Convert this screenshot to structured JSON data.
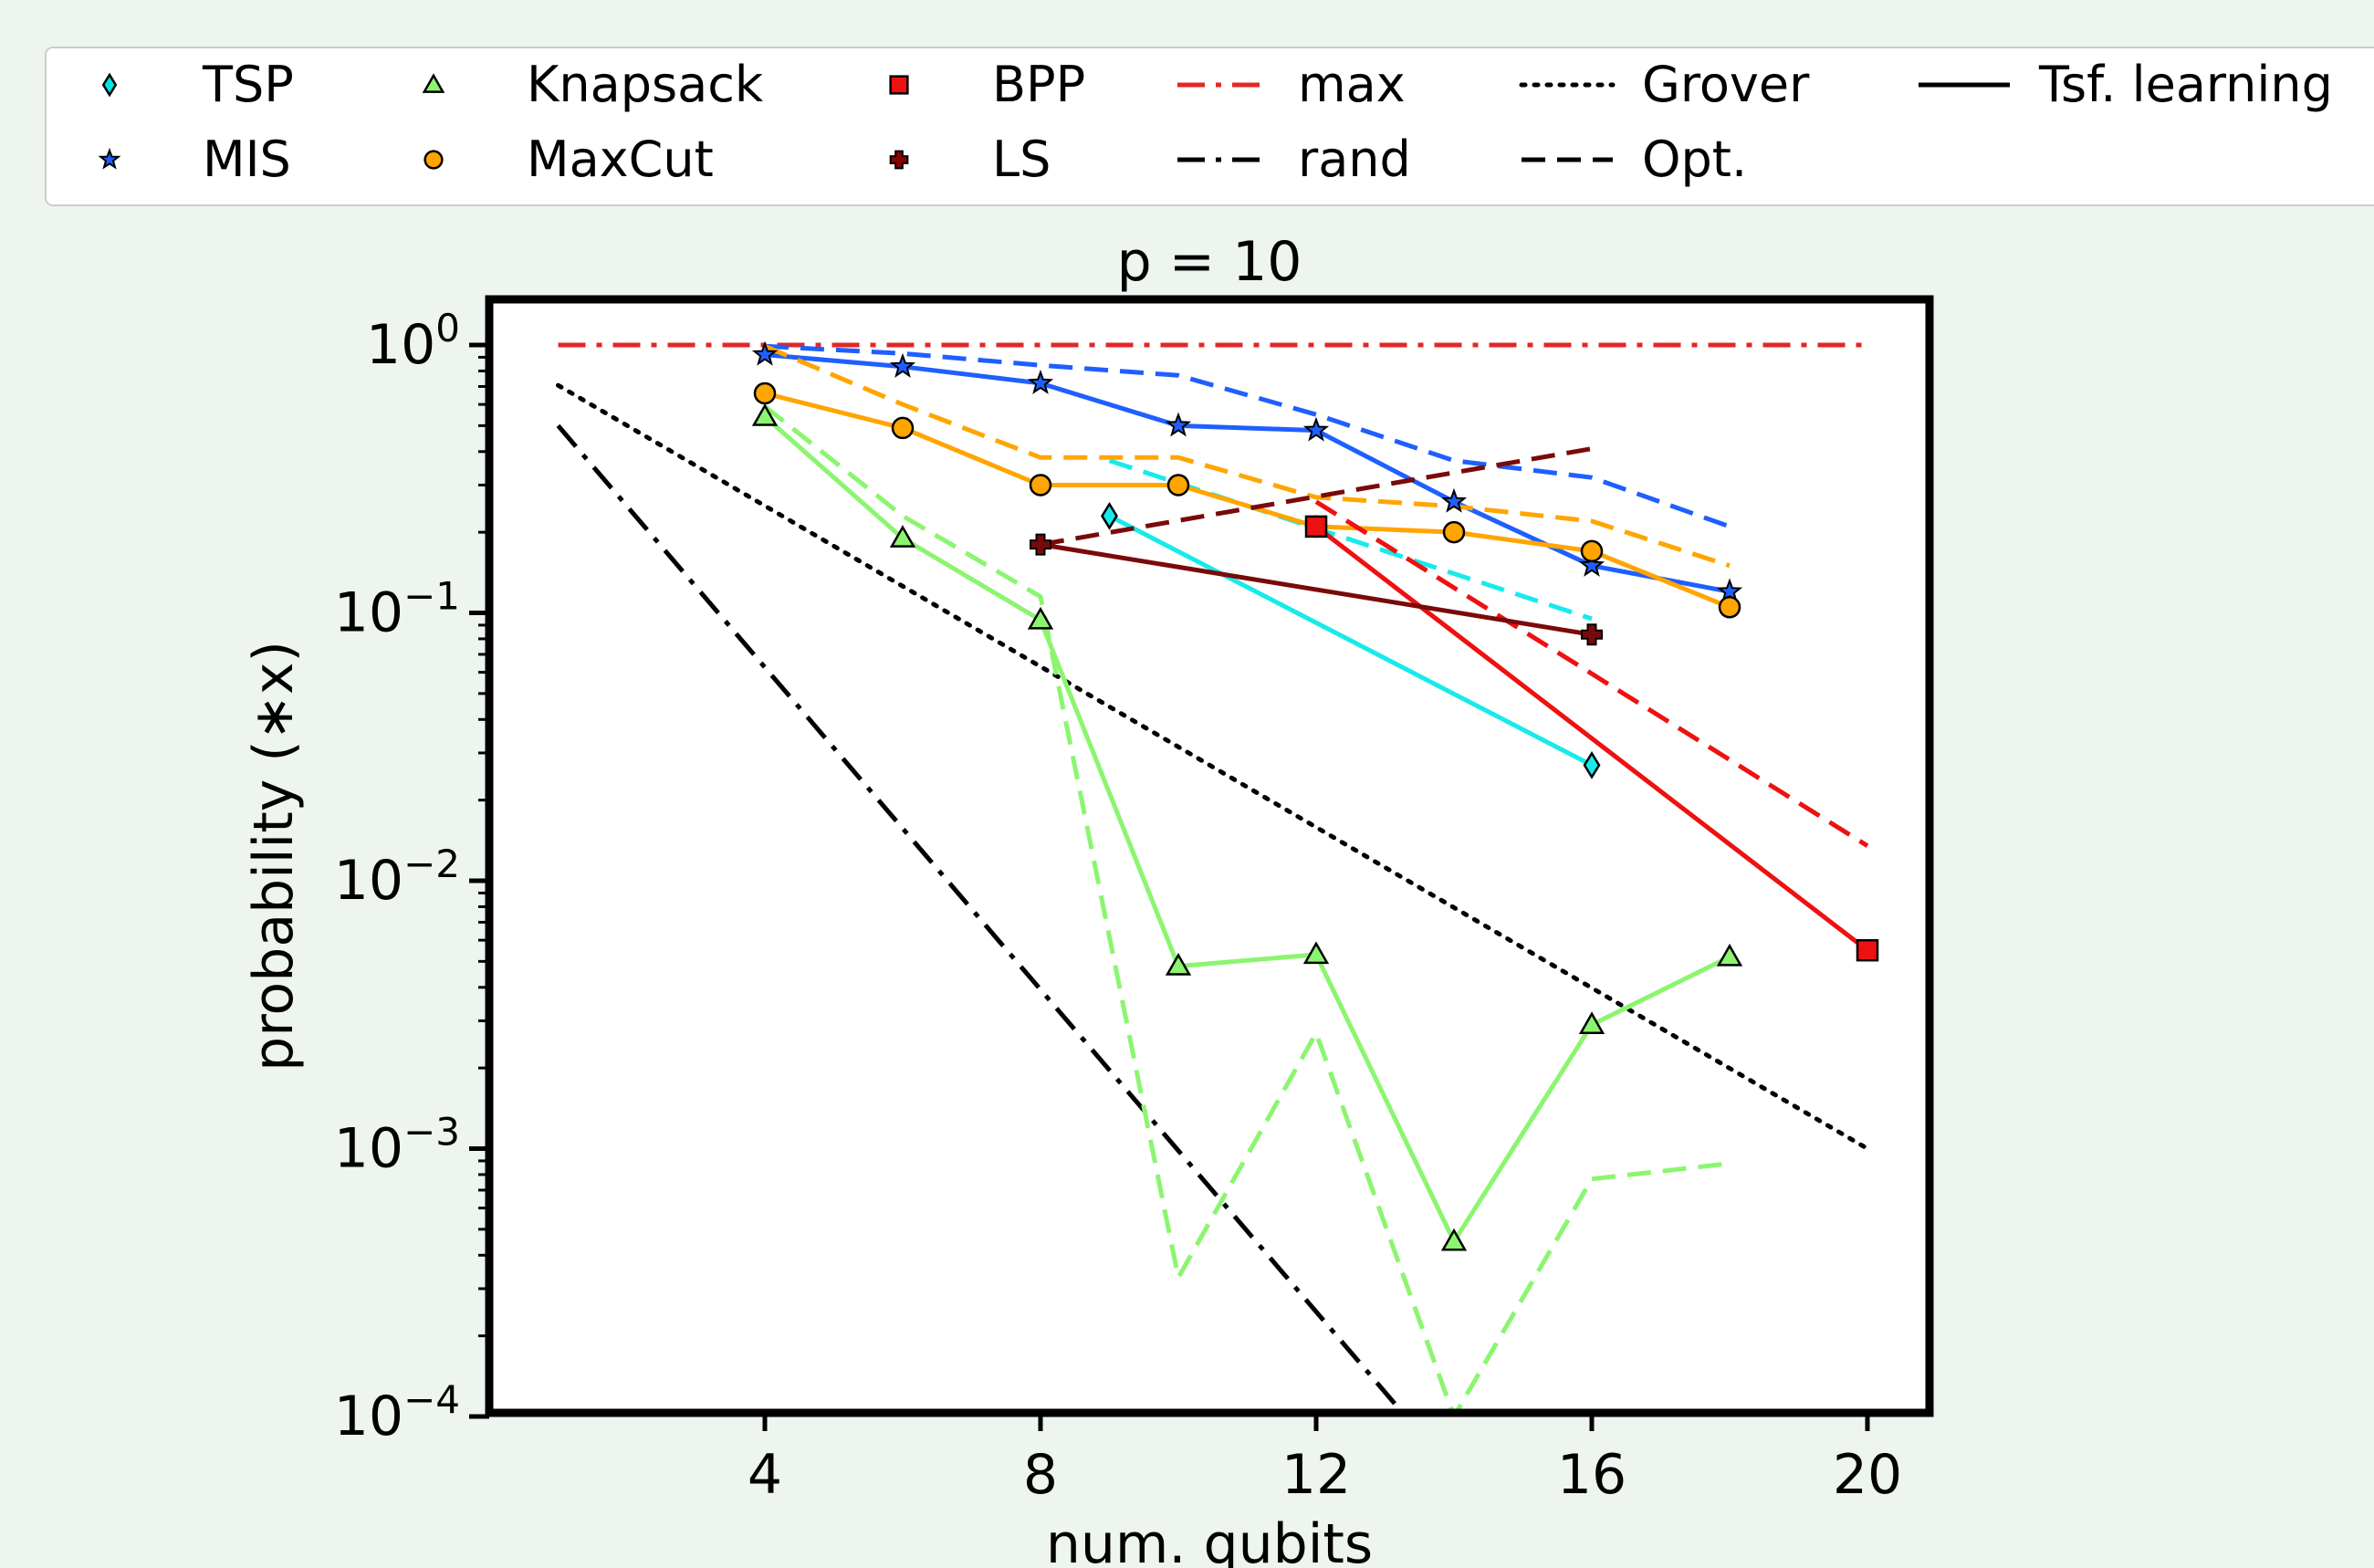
{
  "chart_data": {
    "type": "line",
    "title": "p = 10",
    "xlabel": "num. qubits",
    "ylabel": "probability (∗x)",
    "yscale": "log",
    "xlim": [
      0,
      21
    ],
    "ylim": [
      0.0001,
      1.0
    ],
    "grid": false,
    "legend_position": "top",
    "xticks": [
      {
        "value": 4,
        "label": "4"
      },
      {
        "value": 8,
        "label": "8"
      },
      {
        "value": 12,
        "label": "12"
      },
      {
        "value": 16,
        "label": "16"
      },
      {
        "value": 20,
        "label": "20"
      }
    ],
    "yticks": [
      {
        "value": 1,
        "base": "10",
        "exp": "0"
      },
      {
        "value": 0.1,
        "base": "10",
        "exp": "−1"
      },
      {
        "value": 0.01,
        "base": "10",
        "exp": "−2"
      },
      {
        "value": 0.001,
        "base": "10",
        "exp": "−3"
      },
      {
        "value": 0.0001,
        "base": "10",
        "exp": "−4"
      }
    ],
    "legend": [
      {
        "label": "TSP",
        "kind": "marker",
        "marker": "diamond",
        "color": "#00e5e5"
      },
      {
        "label": "MIS",
        "kind": "marker",
        "marker": "star",
        "color": "#1f5fff"
      },
      {
        "label": "Knapsack",
        "kind": "marker",
        "marker": "triangle",
        "color": "#8cf570"
      },
      {
        "label": "MaxCut",
        "kind": "marker",
        "marker": "circle",
        "color": "#ffa500"
      },
      {
        "label": "BPP",
        "kind": "marker",
        "marker": "square",
        "color": "#ee1111"
      },
      {
        "label": "LS",
        "kind": "marker",
        "marker": "plus",
        "color": "#8b0000"
      },
      {
        "label": "max",
        "kind": "line",
        "dash": "dashdot",
        "color": "#e32626"
      },
      {
        "label": "rand",
        "kind": "line",
        "dash": "dashdot",
        "color": "#000000"
      },
      {
        "label": "Grover",
        "kind": "line",
        "dash": "dotted",
        "color": "#000000"
      },
      {
        "label": "Opt.",
        "kind": "line",
        "dash": "dashed",
        "color": "#000000"
      },
      {
        "label": "Tsf. learning",
        "kind": "line",
        "dash": "solid",
        "color": "#000000"
      }
    ],
    "series": [
      {
        "name": "max",
        "color": "#e32626",
        "dash": "dashdot",
        "marker": "none",
        "x": [
          1,
          20
        ],
        "y": [
          1.0,
          1.0
        ]
      },
      {
        "name": "rand",
        "color": "#000000",
        "dash": "dashdot",
        "marker": "none",
        "x": [
          1,
          13.3
        ],
        "y": [
          0.5,
          0.0001
        ]
      },
      {
        "name": "Grover",
        "color": "#000000",
        "dash": "dotted",
        "marker": "none",
        "x": [
          1,
          20
        ],
        "y": [
          0.707,
          0.001
        ]
      },
      {
        "name": "TSP",
        "color": "#18eaea",
        "dash": "dashed",
        "marker": "none",
        "x": [
          9,
          16
        ],
        "y": [
          0.37,
          0.095
        ]
      },
      {
        "name": "TSP",
        "color": "#18eaea",
        "dash": "solid",
        "marker": "diamond",
        "x": [
          9,
          16
        ],
        "y": [
          0.23,
          0.027
        ]
      },
      {
        "name": "MIS",
        "color": "#1f5fff",
        "dash": "dashed",
        "marker": "none",
        "x": [
          4,
          6,
          8,
          10,
          12,
          14,
          16,
          18
        ],
        "y": [
          0.99,
          0.93,
          0.84,
          0.77,
          0.55,
          0.37,
          0.32,
          0.21
        ]
      },
      {
        "name": "MIS",
        "color": "#1f5fff",
        "dash": "solid",
        "marker": "star",
        "x": [
          4,
          6,
          8,
          10,
          12,
          14,
          16,
          18
        ],
        "y": [
          0.92,
          0.83,
          0.72,
          0.5,
          0.48,
          0.26,
          0.15,
          0.12
        ]
      },
      {
        "name": "Knapsack",
        "color": "#8cf570",
        "dash": "dashed",
        "marker": "none",
        "x": [
          4,
          6,
          8,
          10,
          12,
          14,
          16,
          18
        ],
        "y": [
          0.59,
          0.23,
          0.115,
          0.00033,
          0.0027,
          0.0001,
          0.00077,
          0.00088
        ]
      },
      {
        "name": "Knapsack",
        "color": "#8cf570",
        "dash": "solid",
        "marker": "triangle",
        "x": [
          4,
          6,
          8,
          10,
          12,
          14,
          16,
          18
        ],
        "y": [
          0.54,
          0.19,
          0.094,
          0.0048,
          0.0053,
          0.00045,
          0.0029,
          0.0052
        ]
      },
      {
        "name": "MaxCut",
        "color": "#ffa500",
        "dash": "dashed",
        "marker": "none",
        "x": [
          4,
          6,
          8,
          10,
          12,
          14,
          16,
          18
        ],
        "y": [
          0.99,
          0.6,
          0.38,
          0.38,
          0.27,
          0.25,
          0.22,
          0.15
        ]
      },
      {
        "name": "MaxCut",
        "color": "#ffa500",
        "dash": "solid",
        "marker": "circle",
        "x": [
          4,
          6,
          8,
          10,
          12,
          14,
          16,
          18
        ],
        "y": [
          0.66,
          0.49,
          0.3,
          0.3,
          0.21,
          0.2,
          0.17,
          0.105
        ]
      },
      {
        "name": "BPP",
        "color": "#ee1111",
        "dash": "dashed",
        "marker": "none",
        "x": [
          12,
          20
        ],
        "y": [
          0.26,
          0.0135
        ]
      },
      {
        "name": "BPP",
        "color": "#ee1111",
        "dash": "solid",
        "marker": "square",
        "x": [
          12,
          20
        ],
        "y": [
          0.21,
          0.0055
        ]
      },
      {
        "name": "LS",
        "color": "#7a0a0a",
        "dash": "dashed",
        "marker": "none",
        "x": [
          8,
          16
        ],
        "y": [
          0.18,
          0.41
        ]
      },
      {
        "name": "LS",
        "color": "#7a0a0a",
        "dash": "solid",
        "marker": "plus",
        "x": [
          8,
          16
        ],
        "y": [
          0.18,
          0.083
        ]
      }
    ]
  }
}
